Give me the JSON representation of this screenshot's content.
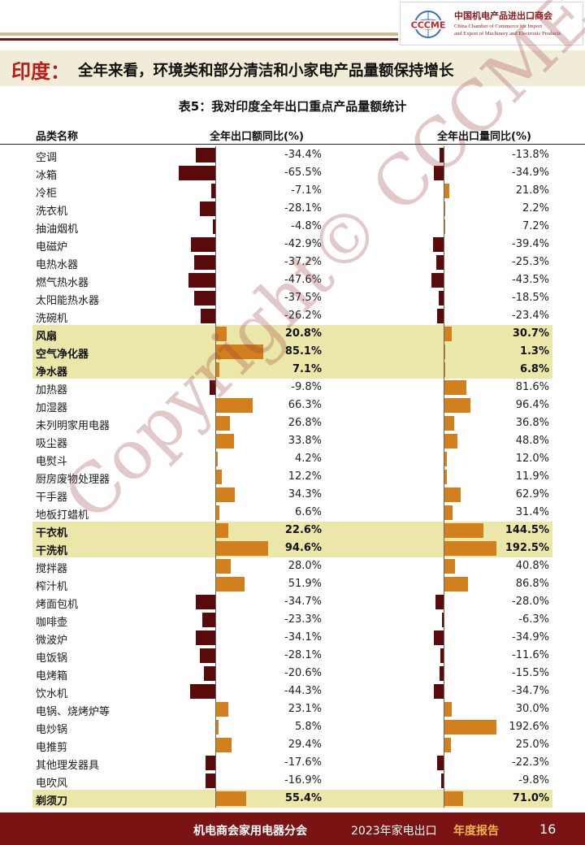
{
  "header": {
    "logo_cn": "中国机电产品进出口商会",
    "logo_en_line1": "China Chamber of Commerce for Import",
    "logo_en_line2": "and Export of Machinery and Electronic Products",
    "logo_mark_text": "CCCME",
    "title_key": "印度：",
    "title_rest": "全年来看，环境类和部分清洁和小家电产品量额保持增长"
  },
  "table": {
    "title": "表5：我对印度全年出口重点产品量额统计",
    "columns": [
      "品类名称",
      "全年出口额同比(%)",
      "全年出口量同比(%)"
    ],
    "rows": [
      {
        "name": "空调",
        "value_pct": "-34.4%",
        "volume_pct": "-13.8%",
        "v": -34.4,
        "q": -13.8,
        "hl": false
      },
      {
        "name": "冰箱",
        "value_pct": "-65.5%",
        "volume_pct": "-34.9%",
        "v": -65.5,
        "q": -34.9,
        "hl": false
      },
      {
        "name": "冷柜",
        "value_pct": "-7.1%",
        "volume_pct": "21.8%",
        "v": -7.1,
        "q": 21.8,
        "hl": false
      },
      {
        "name": "洗衣机",
        "value_pct": "-28.1%",
        "volume_pct": "2.2%",
        "v": -28.1,
        "q": 2.2,
        "hl": false
      },
      {
        "name": "抽油烟机",
        "value_pct": "-4.8%",
        "volume_pct": "7.2%",
        "v": -4.8,
        "q": 7.2,
        "hl": false
      },
      {
        "name": "电磁炉",
        "value_pct": "-42.9%",
        "volume_pct": "-39.4%",
        "v": -42.9,
        "q": -39.4,
        "hl": false
      },
      {
        "name": "电热水器",
        "value_pct": "-37.2%",
        "volume_pct": "-25.3%",
        "v": -37.2,
        "q": -25.3,
        "hl": false
      },
      {
        "name": "燃气热水器",
        "value_pct": "-47.6%",
        "volume_pct": "-43.5%",
        "v": -47.6,
        "q": -43.5,
        "hl": false
      },
      {
        "name": "太阳能热水器",
        "value_pct": "-37.5%",
        "volume_pct": "-18.5%",
        "v": -37.5,
        "q": -18.5,
        "hl": false
      },
      {
        "name": "洗碗机",
        "value_pct": "-26.2%",
        "volume_pct": "-23.4%",
        "v": -26.2,
        "q": -23.4,
        "hl": false
      },
      {
        "name": "风扇",
        "value_pct": "20.8%",
        "volume_pct": "30.7%",
        "v": 20.8,
        "q": 30.7,
        "hl": true
      },
      {
        "name": "空气净化器",
        "value_pct": "85.1%",
        "volume_pct": "1.3%",
        "v": 85.1,
        "q": 1.3,
        "hl": true
      },
      {
        "name": "净水器",
        "value_pct": "7.1%",
        "volume_pct": "6.8%",
        "v": 7.1,
        "q": 6.8,
        "hl": true
      },
      {
        "name": "加热器",
        "value_pct": "-9.8%",
        "volume_pct": "81.6%",
        "v": -9.8,
        "q": 81.6,
        "hl": false
      },
      {
        "name": "加湿器",
        "value_pct": "66.3%",
        "volume_pct": "96.4%",
        "v": 66.3,
        "q": 96.4,
        "hl": false
      },
      {
        "name": "未列明家用电器",
        "value_pct": "26.8%",
        "volume_pct": "36.8%",
        "v": 26.8,
        "q": 36.8,
        "hl": false
      },
      {
        "name": "吸尘器",
        "value_pct": "33.8%",
        "volume_pct": "48.8%",
        "v": 33.8,
        "q": 48.8,
        "hl": false
      },
      {
        "name": "电熨斗",
        "value_pct": "4.2%",
        "volume_pct": "12.0%",
        "v": 4.2,
        "q": 12.0,
        "hl": false
      },
      {
        "name": "厨房废物处理器",
        "value_pct": "12.2%",
        "volume_pct": "11.9%",
        "v": 12.2,
        "q": 11.9,
        "hl": false
      },
      {
        "name": "干手器",
        "value_pct": "34.3%",
        "volume_pct": "62.9%",
        "v": 34.3,
        "q": 62.9,
        "hl": false
      },
      {
        "name": "地板打蜡机",
        "value_pct": "6.6%",
        "volume_pct": "31.4%",
        "v": 6.6,
        "q": 31.4,
        "hl": false
      },
      {
        "name": "干衣机",
        "value_pct": "22.6%",
        "volume_pct": "144.5%",
        "v": 22.6,
        "q": 144.5,
        "hl": true
      },
      {
        "name": "干洗机",
        "value_pct": "94.6%",
        "volume_pct": "192.5%",
        "v": 94.6,
        "q": 192.5,
        "hl": true
      },
      {
        "name": "搅拌器",
        "value_pct": "28.0%",
        "volume_pct": "40.8%",
        "v": 28.0,
        "q": 40.8,
        "hl": false
      },
      {
        "name": "榨汁机",
        "value_pct": "51.9%",
        "volume_pct": "86.8%",
        "v": 51.9,
        "q": 86.8,
        "hl": false
      },
      {
        "name": "烤面包机",
        "value_pct": "-34.7%",
        "volume_pct": "-28.0%",
        "v": -34.7,
        "q": -28.0,
        "hl": false
      },
      {
        "name": "咖啡壶",
        "value_pct": "-23.3%",
        "volume_pct": "-6.3%",
        "v": -23.3,
        "q": -6.3,
        "hl": false
      },
      {
        "name": "微波炉",
        "value_pct": "-34.1%",
        "volume_pct": "-34.9%",
        "v": -34.1,
        "q": -34.9,
        "hl": false
      },
      {
        "name": "电饭锅",
        "value_pct": "-28.1%",
        "volume_pct": "-11.6%",
        "v": -28.1,
        "q": -11.6,
        "hl": false
      },
      {
        "name": "电烤箱",
        "value_pct": "-20.6%",
        "volume_pct": "-15.5%",
        "v": -20.6,
        "q": -15.5,
        "hl": false
      },
      {
        "name": "饮水机",
        "value_pct": "-44.3%",
        "volume_pct": "-34.7%",
        "v": -44.3,
        "q": -34.7,
        "hl": false
      },
      {
        "name": "电锅、烧烤炉等",
        "value_pct": "23.1%",
        "volume_pct": "30.0%",
        "v": 23.1,
        "q": 30.0,
        "hl": false
      },
      {
        "name": "电炒锅",
        "value_pct": "5.8%",
        "volume_pct": "192.6%",
        "v": 5.8,
        "q": 192.6,
        "hl": false
      },
      {
        "name": "电推剪",
        "value_pct": "29.4%",
        "volume_pct": "25.0%",
        "v": 29.4,
        "q": 25.0,
        "hl": false
      },
      {
        "name": "其他理发器具",
        "value_pct": "-17.6%",
        "volume_pct": "-22.3%",
        "v": -17.6,
        "q": -22.3,
        "hl": false
      },
      {
        "name": "电吹风",
        "value_pct": "-16.9%",
        "volume_pct": "-9.8%",
        "v": -16.9,
        "q": -9.8,
        "hl": false
      },
      {
        "name": "剃须刀",
        "value_pct": "55.4%",
        "volume_pct": "71.0%",
        "v": 55.4,
        "q": 71.0,
        "hl": true
      }
    ]
  },
  "colors": {
    "negative_bar": "#5a0a0a",
    "positive_bar": "#d2801e",
    "highlight_row": "#ebe7a8",
    "footer_bg": "#7a1414"
  },
  "watermark": "Copyright© CCCME",
  "footer": {
    "org": "机电商会家用电器分会",
    "report_prefix": "2023年家电出口",
    "report_suffix": "年度报告",
    "page": "16"
  }
}
